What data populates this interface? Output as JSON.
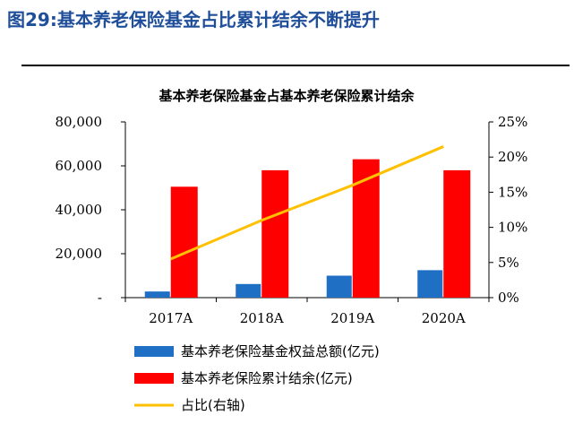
{
  "figure_title": "图29:基本养老保险基金占比累计结余不断提升",
  "chart_data": {
    "type": "bar",
    "title": "基本养老保险基金占基本养老保险累计结余",
    "categories": [
      "2017A",
      "2018A",
      "2019A",
      "2020A"
    ],
    "series": [
      {
        "name": "基本养老保险基金权益总额(亿元)",
        "type": "bar",
        "axis": "left",
        "color": "#1F6FC5",
        "values": [
          2800,
          6200,
          10000,
          12500
        ]
      },
      {
        "name": "基本养老保险累计结余(亿元)",
        "type": "bar",
        "axis": "left",
        "color": "#FF0000",
        "values": [
          50500,
          58000,
          63000,
          58000
        ]
      },
      {
        "name": "占比(右轴)",
        "type": "line",
        "axis": "right",
        "color": "#FFC000",
        "values": [
          5.5,
          11.0,
          16.0,
          21.5
        ]
      }
    ],
    "y_left": {
      "ylim": [
        0,
        80000
      ],
      "ticks": [
        0,
        20000,
        40000,
        60000,
        80000
      ],
      "tick_labels": [
        "-",
        "20,000",
        "40,000",
        "60,000",
        "80,000"
      ]
    },
    "y_right": {
      "ylim": [
        0,
        25
      ],
      "ticks": [
        0,
        5,
        10,
        15,
        20,
        25
      ],
      "tick_labels": [
        "0%",
        "5%",
        "10%",
        "15%",
        "20%",
        "25%"
      ]
    },
    "legend_placement": "bottom-left"
  }
}
